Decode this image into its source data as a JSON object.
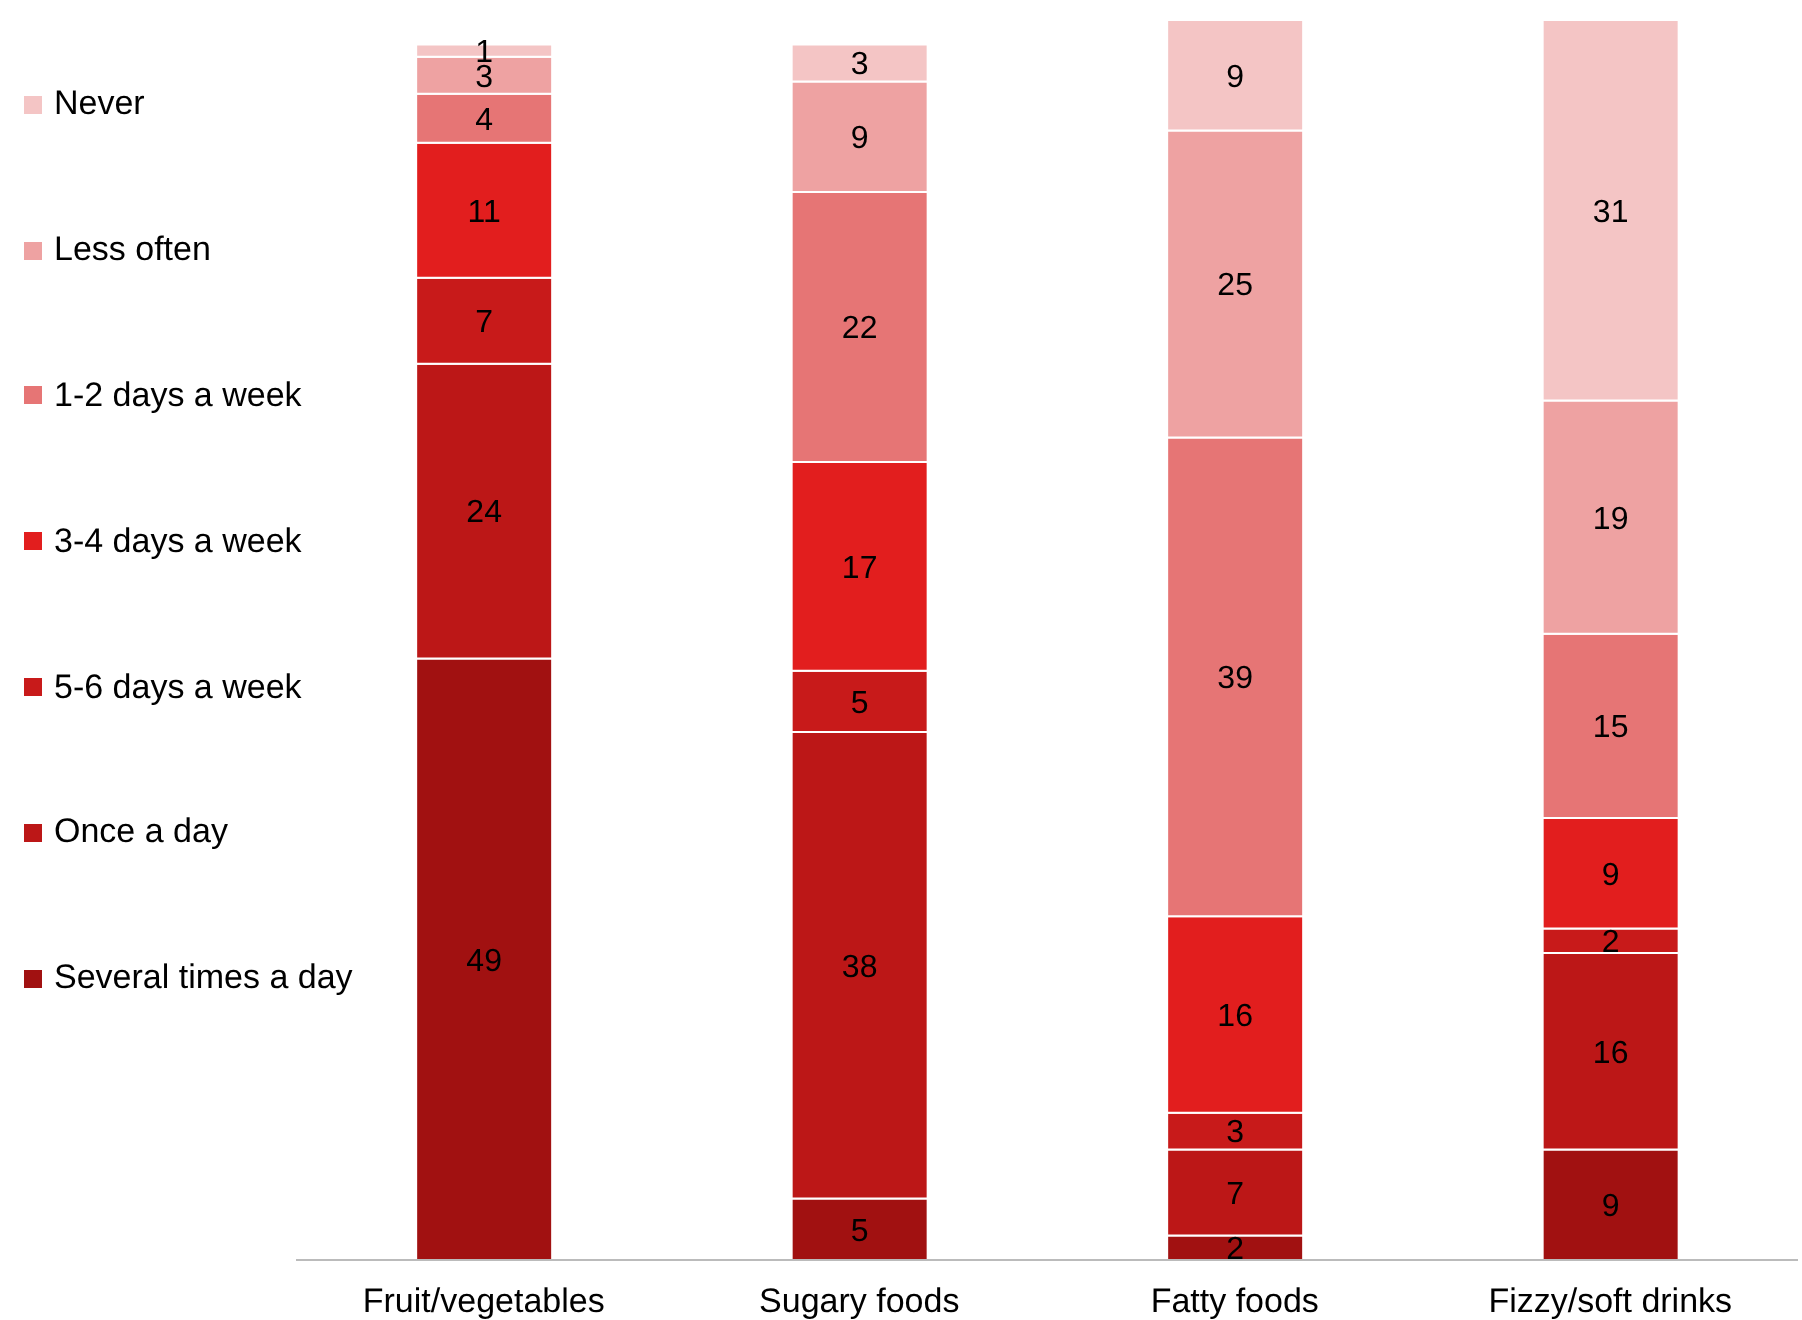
{
  "chart_data": {
    "type": "bar",
    "stacked": true,
    "data_labels": true,
    "legend": "left",
    "grid": false,
    "categories": [
      "Fruit/vegetables",
      "Sugary foods",
      "Fatty foods",
      "Fizzy/soft drinks"
    ],
    "series": [
      {
        "name": "Several times a day",
        "color": "#a11111",
        "values": [
          49,
          5,
          2,
          9
        ]
      },
      {
        "name": "Once a day",
        "color": "#bc1717",
        "values": [
          24,
          38,
          7,
          16
        ]
      },
      {
        "name": "5-6 days a week",
        "color": "#c81a1a",
        "values": [
          7,
          5,
          3,
          2
        ]
      },
      {
        "name": "3-4 days a week",
        "color": "#e21e1e",
        "values": [
          11,
          17,
          16,
          9
        ]
      },
      {
        "name": "1-2 days a week",
        "color": "#e67575",
        "values": [
          4,
          22,
          39,
          15
        ]
      },
      {
        "name": "Less often",
        "color": "#eea2a2",
        "values": [
          3,
          9,
          25,
          19
        ]
      },
      {
        "name": "Never",
        "color": "#f4c5c5",
        "values": [
          1,
          3,
          9,
          31
        ]
      }
    ]
  }
}
